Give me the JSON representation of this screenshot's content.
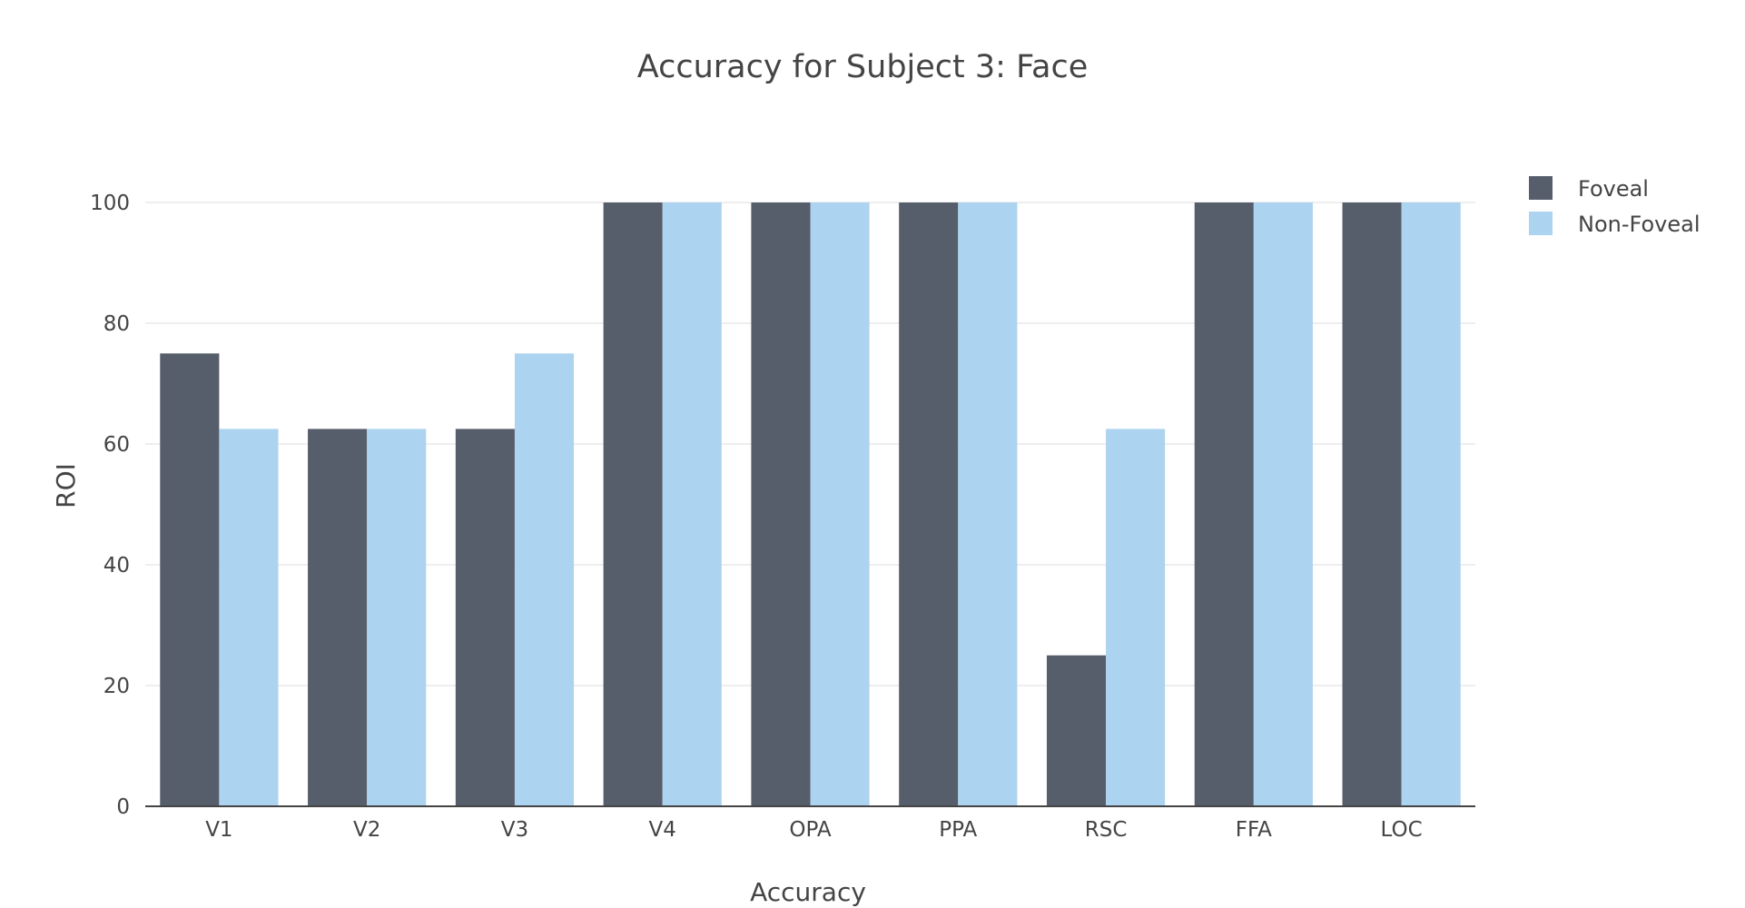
{
  "chart_data": {
    "type": "bar",
    "title": "Accuracy for Subject 3: Face",
    "xlabel": "Accuracy",
    "ylabel": "ROI",
    "categories": [
      "V1",
      "V2",
      "V3",
      "V4",
      "OPA",
      "PPA",
      "RSC",
      "FFA",
      "LOC"
    ],
    "series": [
      {
        "name": "Foveal",
        "color": "#575e6b",
        "values": [
          75,
          62.5,
          62.5,
          100,
          100,
          100,
          25,
          100,
          100
        ]
      },
      {
        "name": "Non-Foveal",
        "color": "#acd3ef",
        "values": [
          62.5,
          62.5,
          75,
          100,
          100,
          100,
          62.5,
          100,
          100
        ]
      }
    ],
    "ylim": [
      0,
      100
    ],
    "yticks": [
      0,
      20,
      40,
      60,
      80,
      100
    ],
    "grid": true,
    "legend_position": "top-right"
  }
}
